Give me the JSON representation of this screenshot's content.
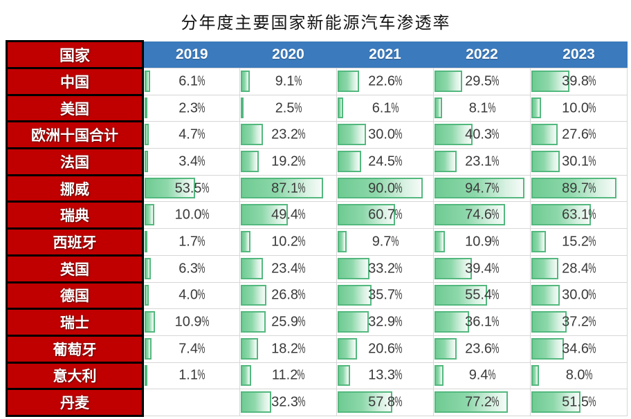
{
  "title": "分年度主要国家新能源汽车渗透率",
  "table": {
    "country_header": "国家",
    "years": [
      "2019",
      "2020",
      "2021",
      "2022",
      "2023"
    ]
  },
  "colors": {
    "header_red": "#C00000",
    "header_blue": "#3B7ABC",
    "bar_border": "#53B87E",
    "bar_fill": "#6FCB92",
    "grid_line": "#D6D6D6",
    "value_text": "#3A3A3A"
  },
  "chart_data": {
    "type": "table",
    "title": "分年度主要国家新能源汽车渗透率",
    "categories": [
      "2019",
      "2020",
      "2021",
      "2022",
      "2023"
    ],
    "unit": "%",
    "bar_scale": [
      0,
      100
    ],
    "legend": "green data bars proportional to percentage, 0-100% scale",
    "rows": [
      {
        "country": "中国",
        "values": [
          6.1,
          9.1,
          22.6,
          29.5,
          39.8
        ]
      },
      {
        "country": "美国",
        "values": [
          2.3,
          2.5,
          6.1,
          8.1,
          10.0
        ]
      },
      {
        "country": "欧洲十国合计",
        "values": [
          4.7,
          23.2,
          30.0,
          40.3,
          27.6
        ]
      },
      {
        "country": "法国",
        "values": [
          3.4,
          19.2,
          24.5,
          23.1,
          30.1
        ]
      },
      {
        "country": "挪威",
        "values": [
          53.5,
          87.1,
          90.0,
          94.7,
          89.7
        ]
      },
      {
        "country": "瑞典",
        "values": [
          10.0,
          49.4,
          60.7,
          74.6,
          63.1
        ]
      },
      {
        "country": "西班牙",
        "values": [
          1.7,
          10.2,
          9.7,
          10.9,
          15.2
        ]
      },
      {
        "country": "英国",
        "values": [
          6.3,
          23.4,
          33.2,
          39.4,
          28.4
        ]
      },
      {
        "country": "德国",
        "values": [
          4.0,
          26.8,
          35.7,
          55.4,
          30.0
        ]
      },
      {
        "country": "瑞士",
        "values": [
          10.9,
          25.9,
          32.9,
          36.1,
          37.2
        ]
      },
      {
        "country": "葡萄牙",
        "values": [
          7.4,
          18.2,
          20.6,
          23.6,
          34.6
        ]
      },
      {
        "country": "意大利",
        "values": [
          1.1,
          11.2,
          13.3,
          9.4,
          8.0
        ]
      },
      {
        "country": "丹麦",
        "values": [
          null,
          32.3,
          57.8,
          77.2,
          51.5
        ]
      }
    ]
  }
}
